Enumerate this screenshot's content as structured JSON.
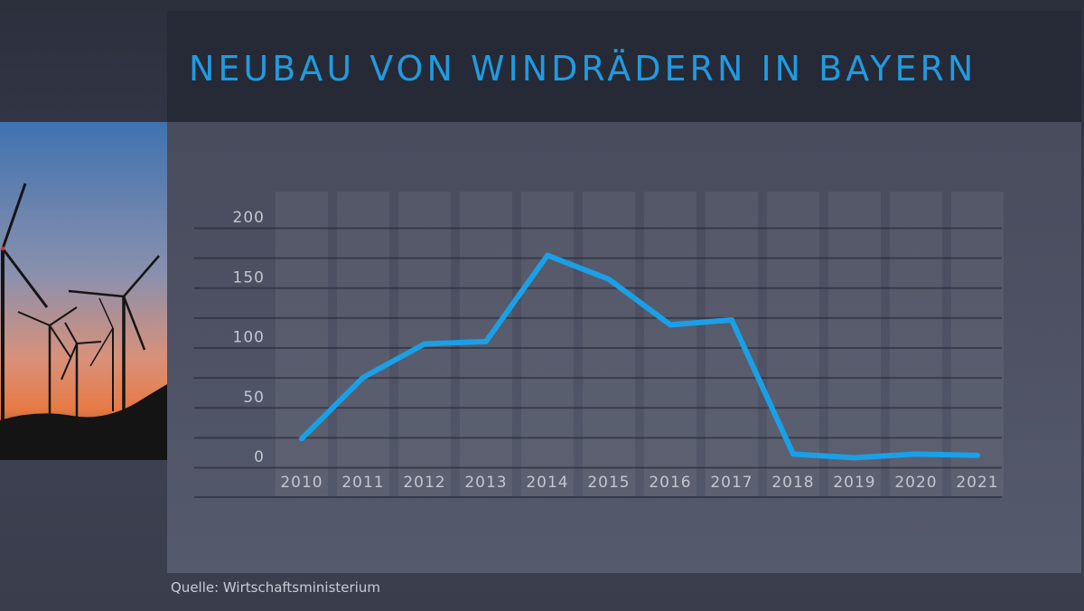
{
  "title": "NEUBAU VON WINDRÄDERN IN BAYERN",
  "source": "Quelle: Wirtschaftsministerium",
  "photo_icon": "wind-turbines-photo",
  "colors": {
    "accent": "#1f9be0",
    "line": "#1aa0e6",
    "title_bar": "#262936",
    "axis_text": "#c3c6d0"
  },
  "chart_data": {
    "type": "line",
    "title": "NEUBAU VON WINDRÄDERN IN BAYERN",
    "xlabel": "",
    "ylabel": "",
    "categories": [
      "2010",
      "2011",
      "2012",
      "2013",
      "2014",
      "2015",
      "2016",
      "2017",
      "2018",
      "2019",
      "2020",
      "2021"
    ],
    "series": [
      {
        "values": [
          24,
          75,
          103,
          105,
          177,
          157,
          119,
          123,
          11,
          8,
          11,
          10
        ]
      }
    ],
    "ylim": [
      0,
      200
    ],
    "yticks": [
      0,
      50,
      100,
      150,
      200
    ],
    "grid": true,
    "legend": "none"
  }
}
